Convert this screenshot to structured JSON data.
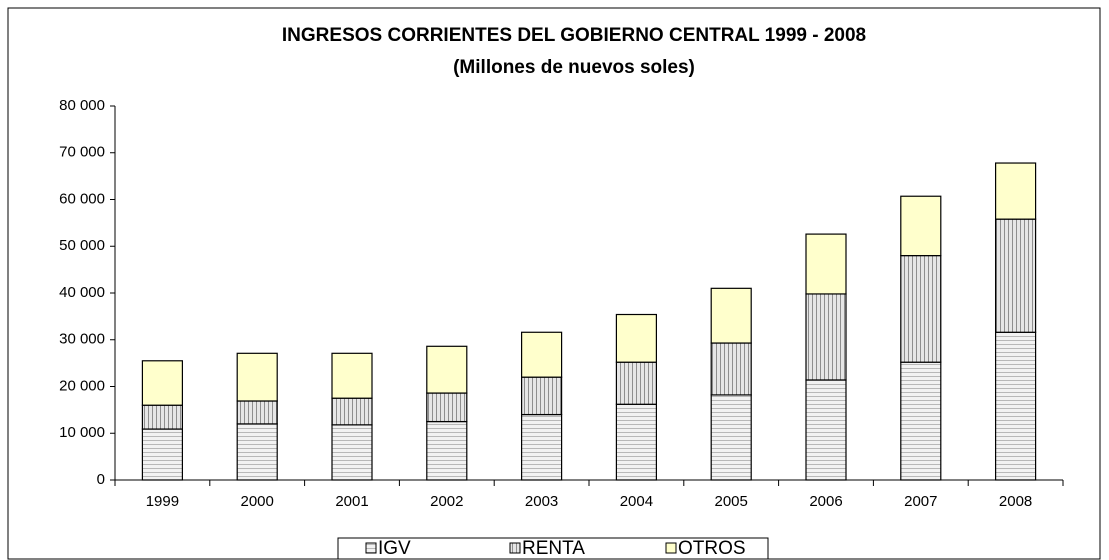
{
  "chart_data": {
    "type": "stacked-bar",
    "title": "INGRESOS CORRIENTES DEL GOBIERNO CENTRAL 1999 - 2008",
    "subtitle": "(Millones de nuevos soles)",
    "categories": [
      "1999",
      "2000",
      "2001",
      "2002",
      "2003",
      "2004",
      "2005",
      "2006",
      "2007",
      "2008"
    ],
    "series": [
      {
        "name": "IGV",
        "color": "#e8e8e8",
        "values": [
          10900,
          12000,
          11800,
          12500,
          14000,
          16200,
          18200,
          21400,
          25200,
          31600
        ]
      },
      {
        "name": "RENTA",
        "color": "#c8c8c8",
        "values": [
          5100,
          4900,
          5700,
          6100,
          8000,
          9000,
          11100,
          18400,
          22800,
          24200
        ]
      },
      {
        "name": "OTROS",
        "color": "#ffffcc",
        "values": [
          9500,
          10200,
          9600,
          10000,
          9600,
          10200,
          11700,
          12800,
          12700,
          12000
        ]
      }
    ],
    "ylim": [
      0,
      80000
    ],
    "yticks": [
      0,
      {
        "value": 10000,
        "label": "10 000"
      },
      {
        "value": 20000,
        "label": "20 000"
      },
      {
        "value": 30000,
        "label": "30 000"
      },
      {
        "value": 40000,
        "label": "40 000"
      },
      {
        "value": 50000,
        "label": "50 000"
      },
      {
        "value": 60000,
        "label": "60 000"
      },
      {
        "value": 70000,
        "label": "70 000"
      },
      {
        "value": 80000,
        "label": "80 000"
      }
    ],
    "legend": "bottom"
  }
}
